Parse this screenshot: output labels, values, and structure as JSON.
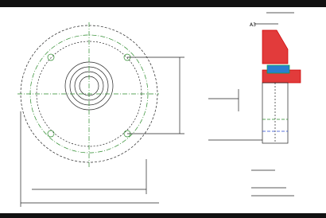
{
  "labels": {
    "section_label": "A3"
  }
}
